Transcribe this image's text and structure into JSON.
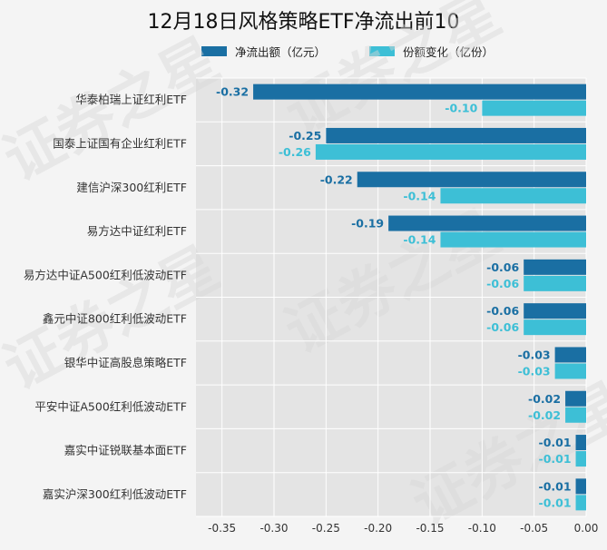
{
  "chart_data": {
    "type": "bar",
    "orientation": "horizontal",
    "title": "12月18日风格策略ETF净流出前10",
    "categories": [
      "华泰柏瑞上证红利ETF",
      "国泰上证国有企业红利ETF",
      "建信沪深300红利ETF",
      "易方达中证红利ETF",
      "易方达中证A500红利低波动ETF",
      "鑫元中证800红利低波动ETF",
      "银华中证高股息策略ETF",
      "平安中证A500红利低波动ETF",
      "嘉实中证锐联基本面ETF",
      "嘉实沪深300红利低波动ETF"
    ],
    "series": [
      {
        "name": "净流出额（亿元）",
        "color": "#1a6fa3",
        "values": [
          -0.32,
          -0.25,
          -0.22,
          -0.19,
          -0.06,
          -0.06,
          -0.03,
          -0.02,
          -0.01,
          -0.01
        ],
        "labels": [
          "-0.32",
          "-0.25",
          "-0.22",
          "-0.19",
          "-0.06",
          "-0.06",
          "-0.03",
          "-0.02",
          "-0.01",
          "-0.01"
        ]
      },
      {
        "name": "份额变化（亿份）",
        "color": "#3dbfd6",
        "values": [
          -0.1,
          -0.26,
          -0.14,
          -0.14,
          -0.06,
          -0.06,
          -0.03,
          -0.02,
          -0.01,
          -0.01
        ],
        "labels": [
          "-0.10",
          "-0.26",
          "-0.14",
          "-0.14",
          "-0.06",
          "-0.06",
          "-0.03",
          "-0.02",
          "-0.01",
          "-0.01"
        ]
      }
    ],
    "xlim": [
      -0.375,
      0.0
    ],
    "xticks": [
      -0.35,
      -0.3,
      -0.25,
      -0.2,
      -0.15,
      -0.1,
      -0.05,
      0.0
    ],
    "xtick_labels": [
      "-0.35",
      "-0.30",
      "-0.25",
      "-0.20",
      "-0.15",
      "-0.10",
      "-0.05",
      "0.00"
    ],
    "grid": true,
    "legend_position": "top",
    "watermark": "证券之星"
  }
}
